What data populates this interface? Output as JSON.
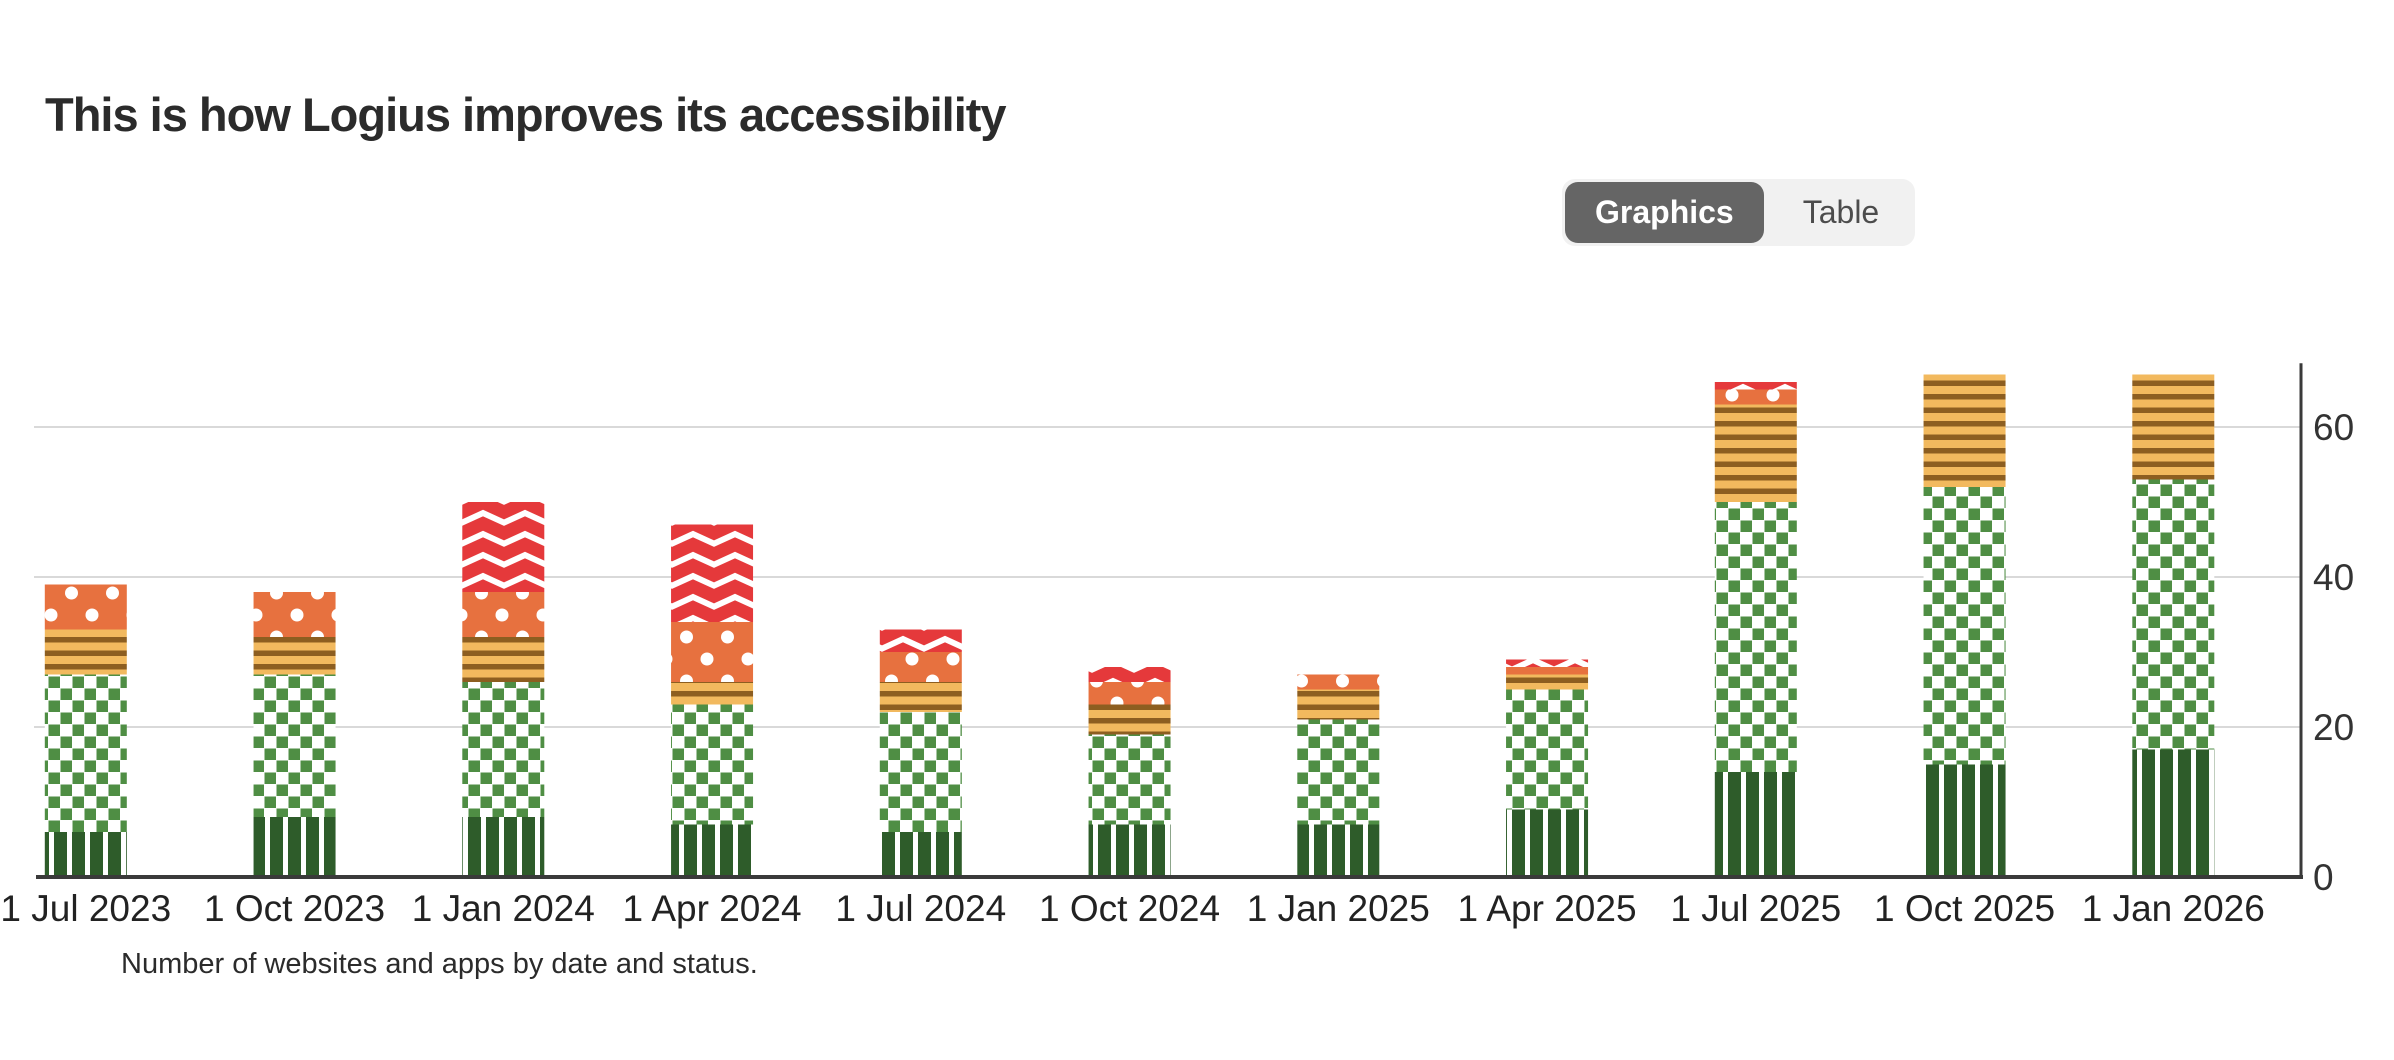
{
  "header": {
    "title": "This is how Logius improves its accessibility"
  },
  "view_toggle": {
    "options": [
      {
        "label": "Graphics",
        "selected": true
      },
      {
        "label": "Table",
        "selected": false
      }
    ],
    "selected_bg": "#656565",
    "selected_text_color": "#ffffff",
    "container_bg": "#f1f1f1",
    "unselected_text_color": "#4c4c4c"
  },
  "chart_data": {
    "type": "bar",
    "stacked": true,
    "caption": "Number of websites and apps by date and status.",
    "categories": [
      "1 Jul 2023",
      "1 Oct 2023",
      "1 Jan 2024",
      "1 Apr 2024",
      "1 Jul 2024",
      "1 Oct 2024",
      "1 Jan 2025",
      "1 Apr 2025",
      "1 Jul 2025",
      "1 Oct 2025",
      "1 Jan 2026"
    ],
    "series": [
      {
        "name": "dark-green-vertical-stripes",
        "pattern": "vertical-stripes",
        "color": "#2e5c2a",
        "pattern_accent": "#ffffff",
        "values": [
          6,
          8,
          8,
          7,
          6,
          7,
          7,
          9,
          14,
          15,
          17
        ]
      },
      {
        "name": "green-checkerboard",
        "pattern": "checkerboard",
        "color": "#4f8e44",
        "pattern_accent": "#ffffff",
        "values": [
          21,
          19,
          18,
          16,
          16,
          12,
          14,
          16,
          36,
          37,
          36
        ]
      },
      {
        "name": "gold-horizontal-stripes",
        "pattern": "horizontal-stripes",
        "color": "#f2b95e",
        "pattern_accent": "#8d5e20",
        "values": [
          6,
          5,
          6,
          3,
          4,
          4,
          4,
          2,
          13,
          15,
          14
        ]
      },
      {
        "name": "orange-white-dots",
        "pattern": "dots",
        "color": "#e7713f",
        "pattern_accent": "#ffffff",
        "values": [
          6,
          6,
          6,
          8,
          4,
          3,
          2,
          1,
          2,
          0,
          0
        ]
      },
      {
        "name": "red-zigzag",
        "pattern": "zigzag",
        "color": "#e5393b",
        "pattern_accent": "#ffffff",
        "values": [
          0,
          0,
          12,
          13,
          3,
          2,
          0,
          1,
          1,
          0,
          0
        ]
      }
    ],
    "totals": [
      39,
      38,
      50,
      47,
      33,
      28,
      27,
      29,
      66,
      67,
      67
    ],
    "yticks": [
      0,
      20,
      40,
      60
    ],
    "ylim": [
      0,
      69
    ],
    "y_axis_position": "right",
    "gridlines": "horizontal",
    "legend": "none",
    "grid_color": "#d9d9d9",
    "axis_color": "#3a3a3a",
    "tick_label_color": "#333333"
  }
}
